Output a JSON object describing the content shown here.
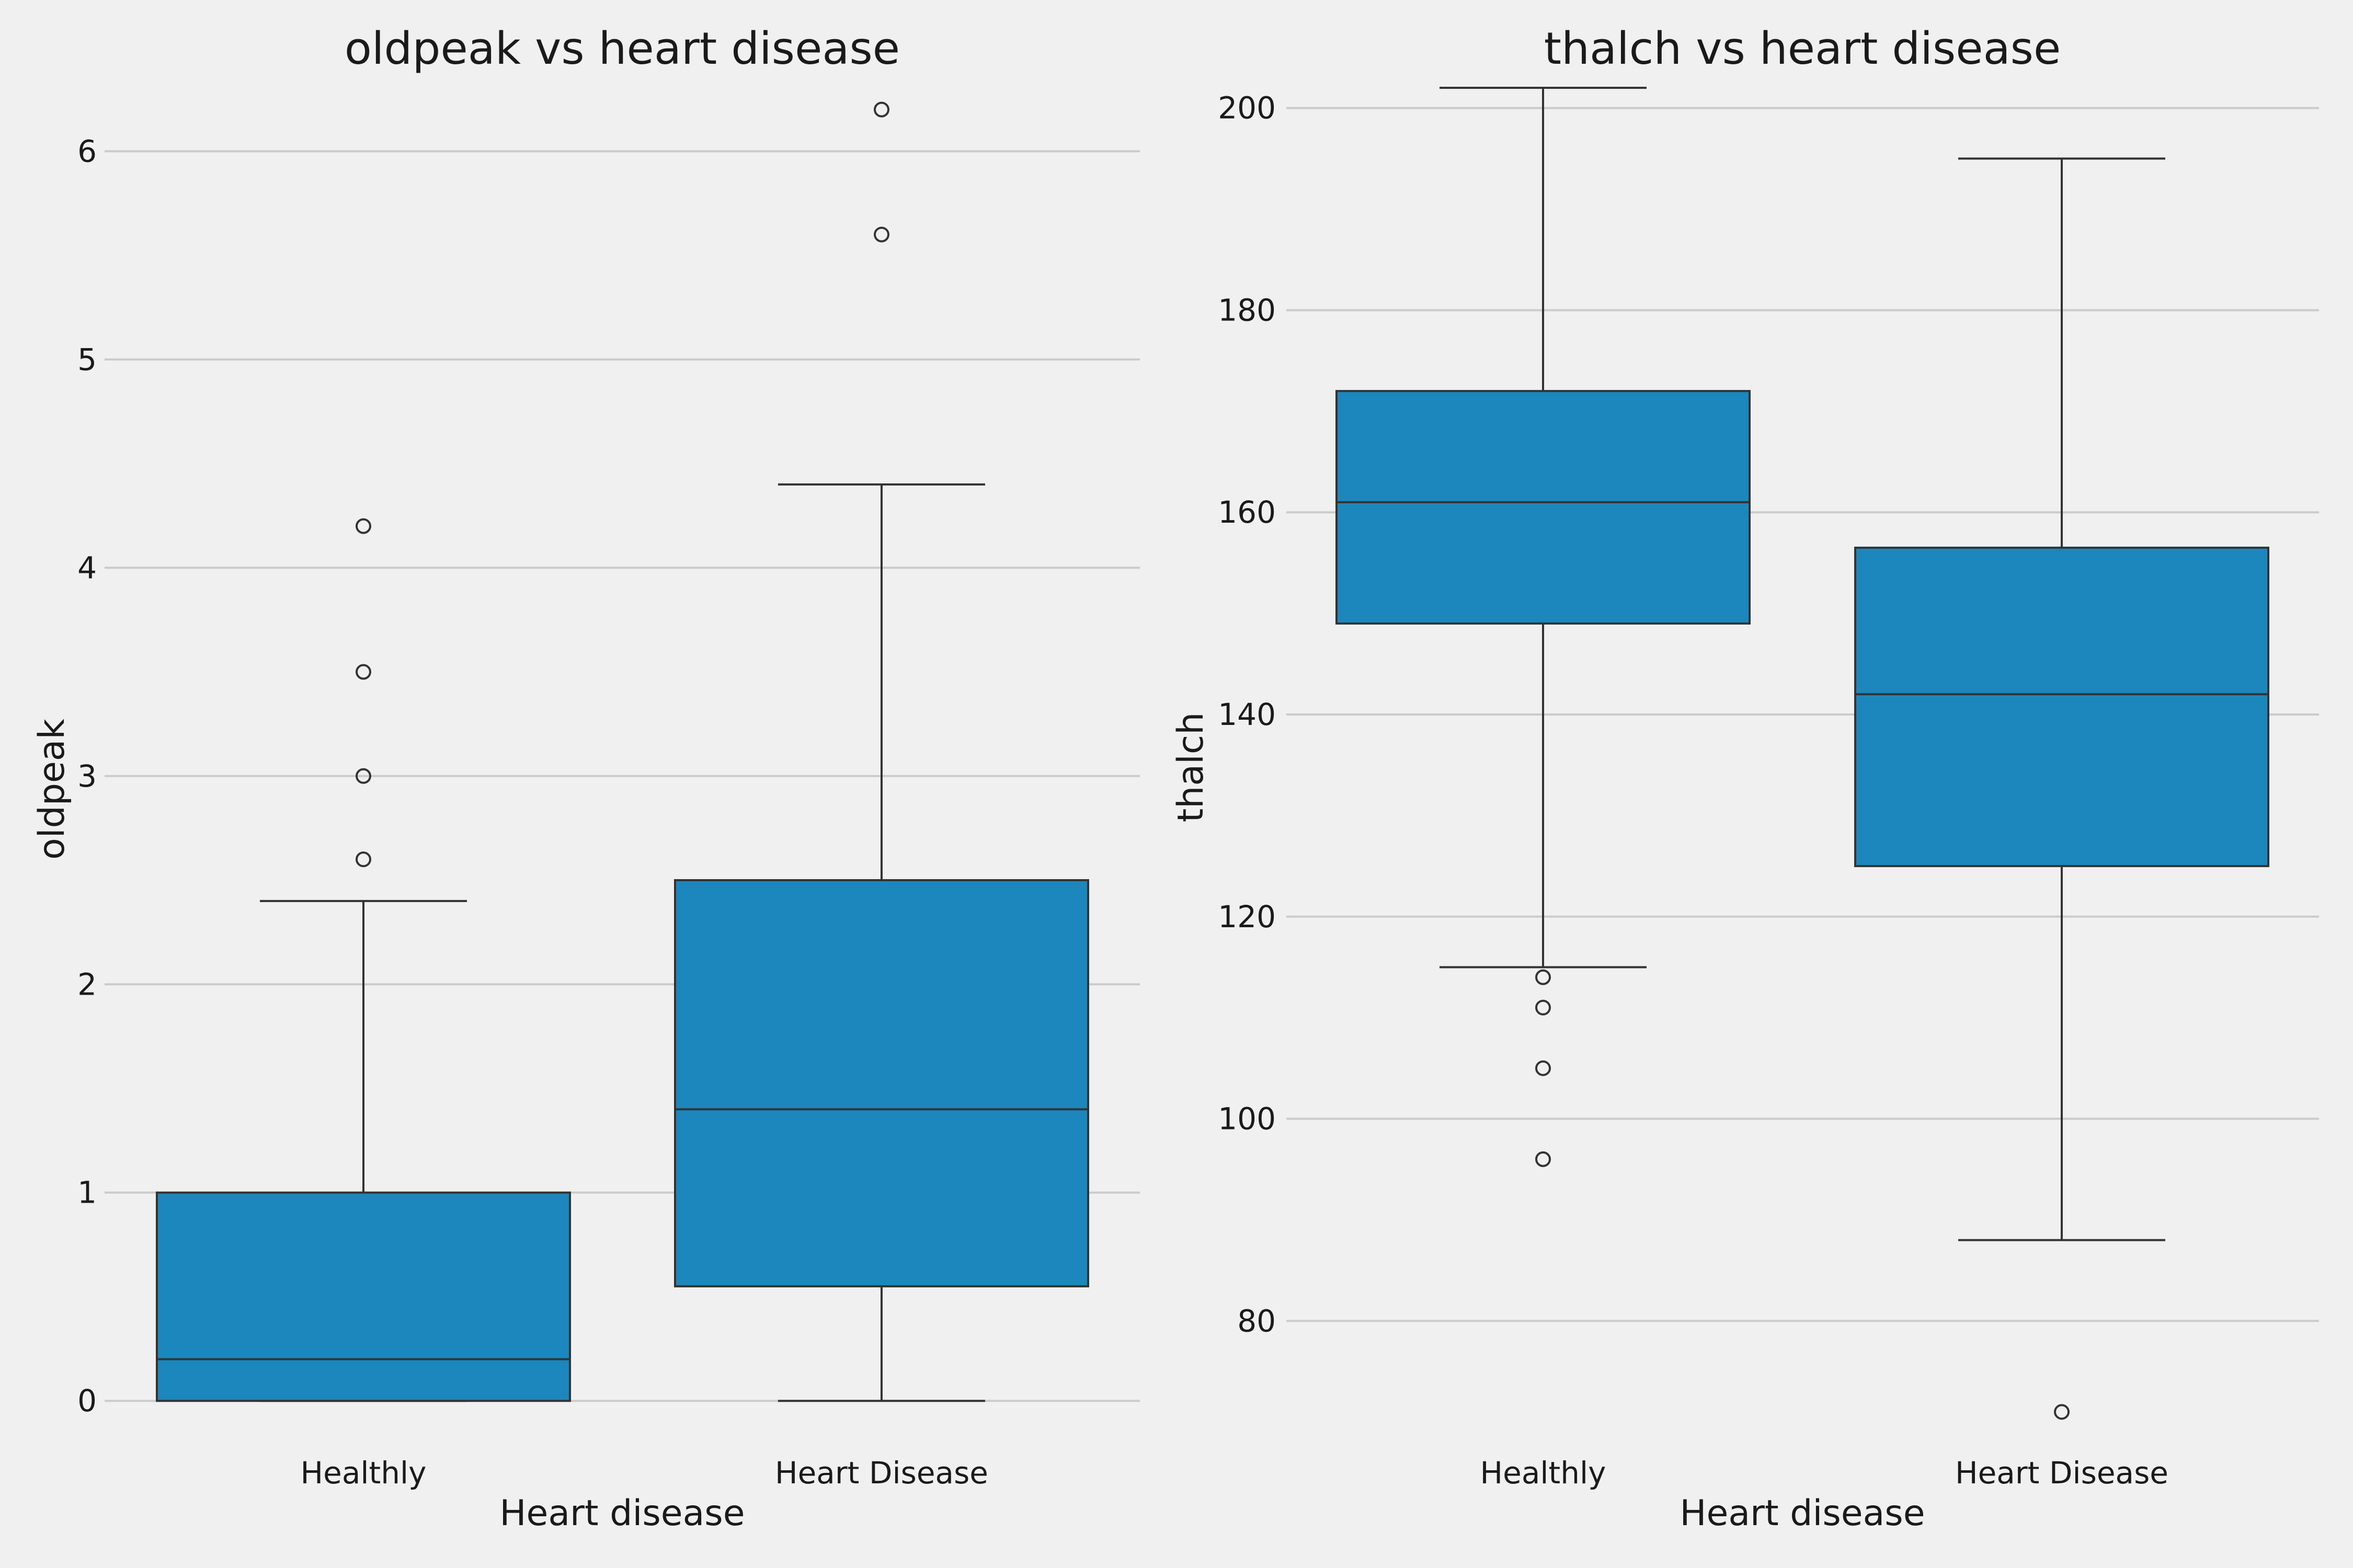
{
  "figure": {
    "background": "#f0f0f0",
    "box_color": "#1c87bd",
    "line_color": "#333333",
    "grid_color": "#cbcbcb"
  },
  "chart_data": [
    {
      "type": "box",
      "title": "oldpeak vs heart disease",
      "xlabel": "Heart disease",
      "ylabel": "oldpeak",
      "categories": [
        "Healthly",
        "Heart Disease"
      ],
      "ylim": [
        -0.15,
        6.45
      ],
      "yticks": [
        0,
        1,
        2,
        3,
        4,
        5,
        6
      ],
      "grid": "horizontal",
      "boxes": [
        {
          "category": "Healthly",
          "whisker_low": 0,
          "q1": 0,
          "median": 0.2,
          "q3": 1.0,
          "whisker_high": 2.4,
          "outliers": [
            2.6,
            3.0,
            3.5,
            4.2
          ]
        },
        {
          "category": "Heart Disease",
          "whisker_low": 0,
          "q1": 0.55,
          "median": 1.4,
          "q3": 2.5,
          "whisker_high": 4.4,
          "outliers": [
            5.6,
            6.2
          ]
        }
      ]
    },
    {
      "type": "box",
      "title": "thalch vs heart disease",
      "xlabel": "Heart disease",
      "ylabel": "thalch",
      "categories": [
        "Healthly",
        "Heart Disease"
      ],
      "ylim": [
        69.0,
        205.0
      ],
      "yticks": [
        80,
        100,
        120,
        140,
        160,
        180,
        200
      ],
      "grid": "horizontal",
      "boxes": [
        {
          "category": "Healthly",
          "whisker_low": 115,
          "q1": 149,
          "median": 161,
          "q3": 172,
          "whisker_high": 202,
          "outliers": [
            114,
            111,
            105,
            96
          ]
        },
        {
          "category": "Heart Disease",
          "whisker_low": 88,
          "q1": 125,
          "median": 142,
          "q3": 156.5,
          "whisker_high": 195,
          "outliers": [
            71
          ]
        }
      ]
    }
  ]
}
